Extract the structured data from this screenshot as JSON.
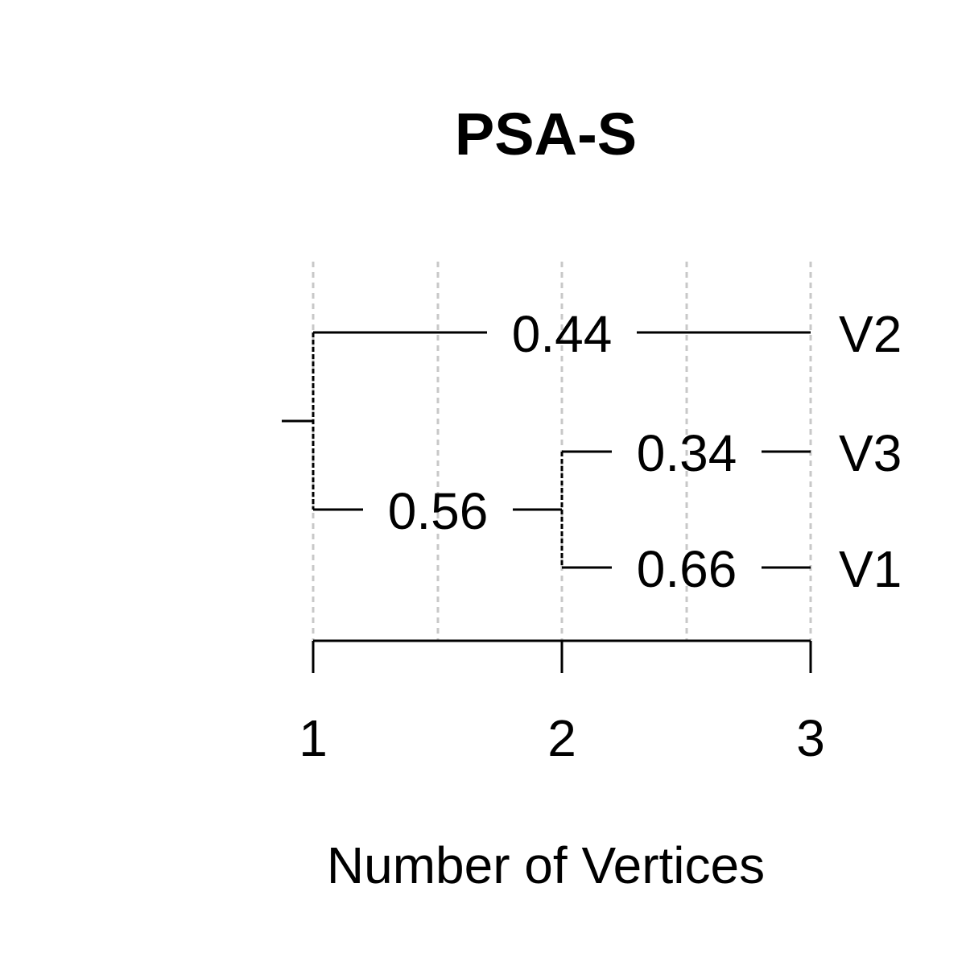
{
  "title": "PSA-S",
  "axis": {
    "label": "Number of Vertices",
    "ticks": [
      "1",
      "2",
      "3"
    ],
    "range": [
      1,
      3
    ],
    "grid": "dotted-at-half-steps"
  },
  "tree": {
    "nodes": [
      {
        "id": "root",
        "x": 1
      },
      {
        "id": "n12",
        "x": 2
      }
    ],
    "edges": [
      {
        "from": "root",
        "to": "V2",
        "from_x": 1,
        "to_x": 3,
        "prob": "0.44"
      },
      {
        "from": "root",
        "to": "n12",
        "from_x": 1,
        "to_x": 2,
        "prob": "0.56"
      },
      {
        "from": "n12",
        "to": "V3",
        "from_x": 2,
        "to_x": 3,
        "prob": "0.34"
      },
      {
        "from": "n12",
        "to": "V1",
        "from_x": 2,
        "to_x": 3,
        "prob": "0.66"
      }
    ],
    "leaves": [
      "V2",
      "V3",
      "V1"
    ]
  },
  "colors": {
    "lines": "#000000",
    "grid": "#c8c8c8",
    "background": "#ffffff"
  }
}
